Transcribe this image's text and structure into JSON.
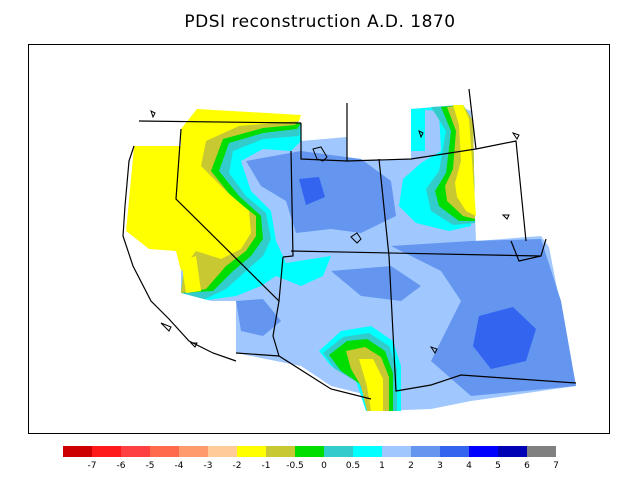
{
  "title": "PDSI reconstruction A.D. 1870",
  "legend": {
    "colors": [
      "#cc0000",
      "#ff1a1a",
      "#ff4040",
      "#ff6a4a",
      "#ff9a6a",
      "#ffcc99",
      "#ffff00",
      "#c8c832",
      "#00dd00",
      "#33cccc",
      "#00ffff",
      "#a0c8ff",
      "#6496f0",
      "#3264f0",
      "#0000ff",
      "#0000b4",
      "#808080"
    ],
    "ticks": [
      "-7",
      "-6",
      "-5",
      "-4",
      "-3",
      "-2",
      "-1",
      "-0.5",
      "0",
      "0.5",
      "1",
      "2",
      "3",
      "4",
      "5",
      "6",
      "7"
    ]
  },
  "palette": {
    "yellow": "#ffff00",
    "olive": "#c8c832",
    "green": "#00dd00",
    "teal": "#33cccc",
    "cyan": "#00ffff",
    "lightblue": "#a0c8ff",
    "midblue": "#6496f0",
    "blue": "#3264f0"
  }
}
